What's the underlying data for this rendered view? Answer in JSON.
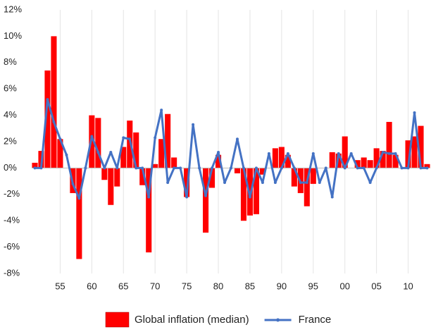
{
  "chart_data": {
    "type": "bar_line",
    "categories": [
      null,
      null,
      null,
      null,
      "55",
      null,
      null,
      null,
      null,
      "60",
      null,
      null,
      null,
      null,
      "65",
      null,
      null,
      null,
      null,
      "70",
      null,
      null,
      null,
      null,
      "75",
      null,
      null,
      null,
      null,
      "80",
      null,
      null,
      null,
      null,
      "85",
      null,
      null,
      null,
      null,
      "90",
      null,
      null,
      null,
      null,
      "95",
      null,
      null,
      null,
      null,
      "00",
      null,
      null,
      null,
      null,
      "05",
      null,
      null,
      null,
      null,
      "10",
      null,
      null,
      null
    ],
    "series": [
      {
        "name": "Global inflation (median)",
        "type": "bar",
        "color": "#ff0000",
        "values": [
          0.4,
          1.3,
          7.4,
          10.0,
          2.2,
          0,
          -1.9,
          -6.9,
          0,
          4.0,
          3.8,
          -0.9,
          -2.8,
          -1.4,
          1.6,
          3.6,
          2.7,
          -1.3,
          -6.4,
          0.3,
          2.2,
          4.1,
          0.8,
          0,
          -2.2,
          0,
          0,
          -4.9,
          -1.5,
          1.0,
          0,
          0,
          -0.4,
          -4.0,
          -3.6,
          -3.5,
          -0.5,
          0,
          1.5,
          1.6,
          1.0,
          -1.4,
          -1.9,
          -2.9,
          -1.2,
          0,
          0,
          1.2,
          1.1,
          2.4,
          0,
          0.6,
          0.8,
          0.6,
          1.5,
          1.3,
          3.5,
          1.0,
          0,
          2.1,
          2.4,
          3.2,
          0.3
        ]
      },
      {
        "name": "France",
        "type": "line",
        "color": "#4472c4",
        "values": [
          0,
          0,
          5.2,
          3.5,
          2.2,
          1.0,
          -1.2,
          -2.3,
          0,
          2.4,
          1.2,
          0,
          1.2,
          0,
          2.3,
          2.2,
          0,
          0,
          -2.2,
          2.3,
          4.4,
          -1.1,
          0,
          0,
          -2.2,
          3.3,
          0,
          -2.1,
          0,
          1.2,
          -1.1,
          0,
          2.2,
          0,
          -2.2,
          0,
          -1.1,
          1.1,
          -1.1,
          0,
          1.1,
          0,
          -1.1,
          -1.1,
          1.1,
          -1.1,
          0,
          -2.2,
          1.1,
          0,
          1.1,
          0,
          0,
          -1.1,
          0,
          1.2,
          1.1,
          1.1,
          0,
          0,
          4.2,
          0,
          0
        ]
      }
    ],
    "ylim": [
      -8,
      12
    ],
    "yticks": [
      {
        "value": -8,
        "label": "-8%"
      },
      {
        "value": -6,
        "label": "-6%"
      },
      {
        "value": -4,
        "label": "-4%"
      },
      {
        "value": -2,
        "label": "-2%"
      },
      {
        "value": 0,
        "label": "0%"
      },
      {
        "value": 2,
        "label": "2%"
      },
      {
        "value": 4,
        "label": "4%"
      },
      {
        "value": 6,
        "label": "6%"
      },
      {
        "value": 8,
        "label": "8%"
      },
      {
        "value": 10,
        "label": "10%"
      },
      {
        "value": 12,
        "label": "12%"
      }
    ],
    "legend": "bottom"
  }
}
